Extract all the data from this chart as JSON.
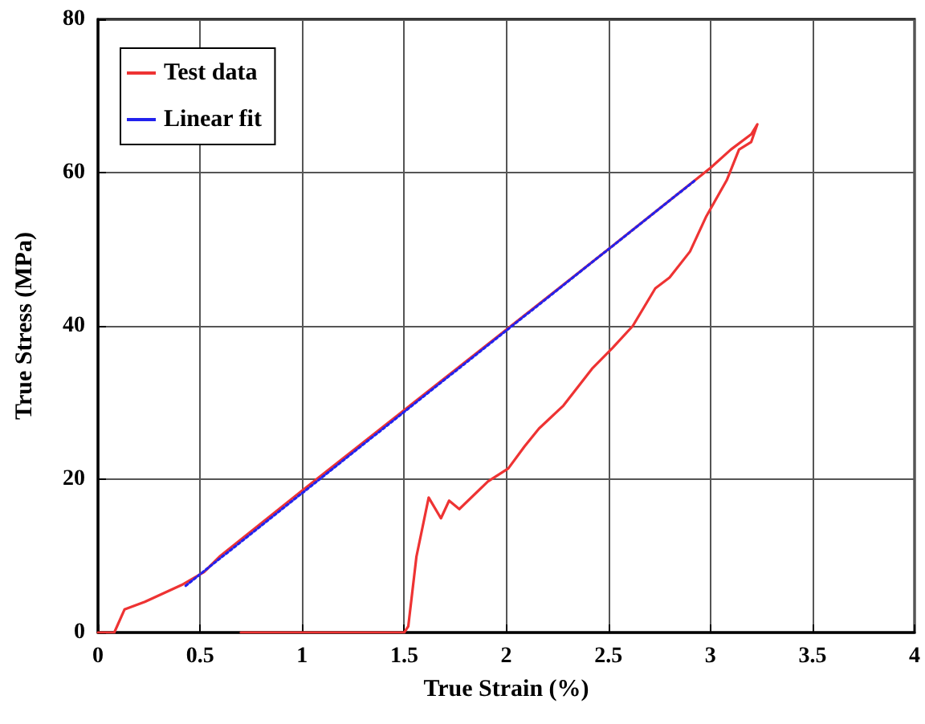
{
  "chart_data": {
    "type": "line",
    "xlabel": "True Strain (%)",
    "ylabel": "True Stress (MPa)",
    "xlim": [
      0,
      4
    ],
    "xticks": [
      0,
      0.5,
      1,
      1.5,
      2,
      2.5,
      3,
      3.5,
      4
    ],
    "ylim": [
      0,
      80
    ],
    "yticks": [
      0,
      20,
      40,
      60,
      80
    ],
    "grid": true,
    "legend": "top left",
    "marker": "none",
    "series": [
      {
        "name": "Test data",
        "color": "#ee3333",
        "line_style": "solid",
        "x": [
          0,
          0.08,
          0.13,
          0.23,
          0.41,
          0.52,
          0.6,
          1,
          1.5,
          2,
          2.5,
          3,
          3.1,
          3.2,
          3.23,
          3.2,
          3.14,
          3.08,
          2.98,
          2.9,
          2.8,
          2.73,
          2.62,
          2.52,
          2.42,
          2.28,
          2.16,
          2.09,
          2.01,
          1.91,
          1.77,
          1.72,
          1.68,
          1.62,
          1.56,
          1.52,
          1.5,
          0.7
        ],
        "values": [
          0,
          0,
          3,
          4,
          6.2,
          7.9,
          10,
          18.5,
          29,
          39.5,
          50,
          60.6,
          63,
          65,
          66.3,
          64,
          63,
          59,
          54.3,
          49.7,
          46.3,
          44.9,
          40,
          37.1,
          34.4,
          29.6,
          26.6,
          24.3,
          21.4,
          19.7,
          16.1,
          17.2,
          14.9,
          17.6,
          9.9,
          0.8,
          0,
          0
        ]
      },
      {
        "name": "Linear fit",
        "type": "line",
        "color": "#2222ee",
        "line_style": "dotted",
        "x": [
          0.43,
          2.93
        ],
        "values": [
          6.1,
          59.1
        ]
      }
    ]
  }
}
